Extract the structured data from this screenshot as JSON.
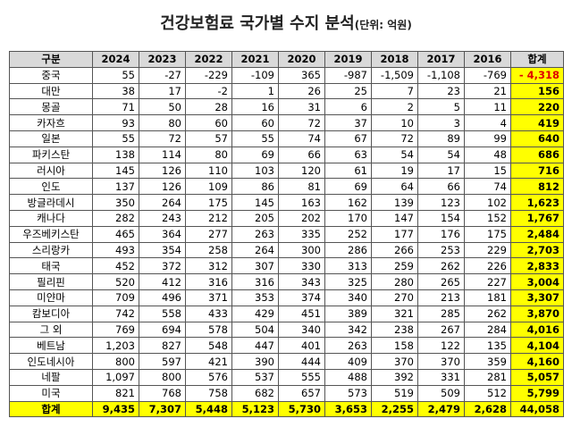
{
  "title": "건강보험료 국가별 수지 분석",
  "unit": "(단위: 억원)",
  "table": {
    "header": [
      "구분",
      "2024",
      "2023",
      "2022",
      "2021",
      "2020",
      "2019",
      "2018",
      "2017",
      "2016",
      "합계"
    ],
    "rows": [
      [
        "중국",
        "55",
        "-27",
        "-229",
        "-109",
        "365",
        "-987",
        "-1,509",
        "-1,108",
        "-769",
        "- 4,318"
      ],
      [
        "대만",
        "38",
        "17",
        "-2",
        "1",
        "26",
        "25",
        "7",
        "23",
        "21",
        "156"
      ],
      [
        "몽골",
        "71",
        "50",
        "28",
        "16",
        "31",
        "6",
        "2",
        "5",
        "11",
        "220"
      ],
      [
        "카자흐",
        "93",
        "80",
        "60",
        "60",
        "72",
        "37",
        "10",
        "3",
        "4",
        "419"
      ],
      [
        "일본",
        "55",
        "72",
        "57",
        "55",
        "74",
        "67",
        "72",
        "89",
        "99",
        "640"
      ],
      [
        "파키스탄",
        "138",
        "114",
        "80",
        "69",
        "66",
        "63",
        "54",
        "54",
        "48",
        "686"
      ],
      [
        "러시아",
        "145",
        "126",
        "110",
        "103",
        "120",
        "61",
        "19",
        "17",
        "15",
        "716"
      ],
      [
        "인도",
        "137",
        "126",
        "109",
        "86",
        "81",
        "69",
        "64",
        "66",
        "74",
        "812"
      ],
      [
        "방글라데시",
        "350",
        "264",
        "175",
        "145",
        "163",
        "162",
        "139",
        "123",
        "102",
        "1,623"
      ],
      [
        "캐나다",
        "282",
        "243",
        "212",
        "205",
        "202",
        "170",
        "147",
        "154",
        "152",
        "1,767"
      ],
      [
        "우즈베키스탄",
        "465",
        "364",
        "277",
        "263",
        "335",
        "252",
        "177",
        "176",
        "175",
        "2,484"
      ],
      [
        "스리랑카",
        "493",
        "354",
        "258",
        "264",
        "300",
        "286",
        "266",
        "253",
        "229",
        "2,703"
      ],
      [
        "태국",
        "452",
        "372",
        "312",
        "307",
        "330",
        "313",
        "259",
        "262",
        "226",
        "2,833"
      ],
      [
        "필리핀",
        "520",
        "412",
        "316",
        "316",
        "343",
        "325",
        "280",
        "265",
        "227",
        "3,004"
      ],
      [
        "미얀마",
        "709",
        "496",
        "371",
        "353",
        "374",
        "340",
        "270",
        "213",
        "181",
        "3,307"
      ],
      [
        "캄보디아",
        "742",
        "558",
        "433",
        "429",
        "451",
        "389",
        "321",
        "285",
        "262",
        "3,870"
      ],
      [
        "그 외",
        "769",
        "694",
        "578",
        "504",
        "340",
        "342",
        "238",
        "267",
        "284",
        "4,016"
      ],
      [
        "베트남",
        "1,203",
        "827",
        "548",
        "447",
        "401",
        "263",
        "158",
        "122",
        "135",
        "4,104"
      ],
      [
        "인도네시아",
        "800",
        "597",
        "421",
        "390",
        "444",
        "409",
        "370",
        "370",
        "359",
        "4,160"
      ],
      [
        "네팔",
        "1,097",
        "800",
        "576",
        "537",
        "555",
        "488",
        "392",
        "331",
        "281",
        "5,057"
      ],
      [
        "미국",
        "821",
        "768",
        "758",
        "682",
        "657",
        "573",
        "519",
        "509",
        "512",
        "5,799"
      ]
    ],
    "total": [
      "합계",
      "9,435",
      "7,307",
      "5,448",
      "5,123",
      "5,730",
      "3,653",
      "2,255",
      "2,479",
      "2,628",
      "44,058"
    ]
  }
}
